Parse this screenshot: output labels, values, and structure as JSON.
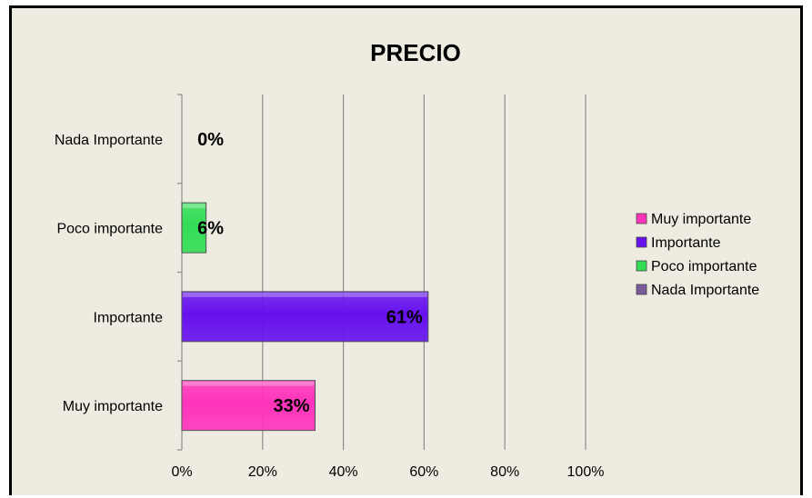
{
  "chart_data": {
    "type": "bar",
    "orientation": "horizontal",
    "title": "PRECIO",
    "xlabel": "",
    "ylabel": "",
    "xlim": [
      0,
      100
    ],
    "x_ticks": [
      0,
      20,
      40,
      60,
      80,
      100
    ],
    "x_tick_labels": [
      "0%",
      "20%",
      "40%",
      "60%",
      "80%",
      "100%"
    ],
    "grid": "vertical",
    "legend_position": "right",
    "categories": [
      "Muy importante",
      "Importante",
      "Poco importante",
      "Nada Importante"
    ],
    "values": [
      33,
      61,
      6,
      0
    ],
    "data_labels": [
      "33%",
      "61%",
      "6%",
      "0%"
    ],
    "colors": [
      "#ff33bb",
      "#6611ee",
      "#33dd55",
      "#7a5a9a"
    ],
    "legend": [
      "Muy importante",
      "Importante",
      "Poco importante",
      "Nada Importante"
    ]
  }
}
